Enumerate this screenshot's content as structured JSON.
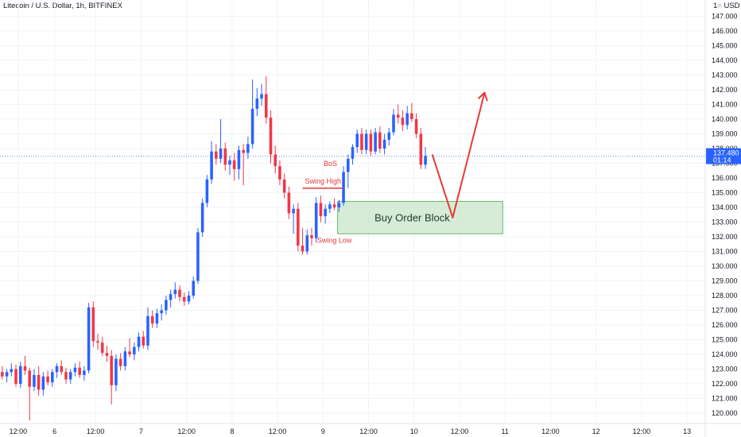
{
  "chart_data": {
    "type": "candlestick",
    "title": "Litecoin / U.S. Dollar, 1h, BITFINEX",
    "currency": "USD",
    "currency_prefix": "1",
    "xlim": [
      0,
      155
    ],
    "ylim": [
      119.3,
      148.1
    ],
    "y_ticks": [
      120,
      121,
      122,
      123,
      124,
      125,
      126,
      127,
      128,
      129,
      130,
      131,
      132,
      133,
      134,
      135,
      136,
      137,
      138,
      139,
      140,
      141,
      142,
      143,
      144,
      145,
      146,
      147
    ],
    "y_tick_labels": [
      "120.000",
      "121.000",
      "122.000",
      "123.000",
      "124.000",
      "125.000",
      "126.000",
      "127.000",
      "128.000",
      "129.000",
      "130.000",
      "131.000",
      "132.000",
      "133.000",
      "134.000",
      "135.000",
      "136.000",
      "137.000",
      "138.000",
      "139.000",
      "140.000",
      "141.000",
      "142.000",
      "143.000",
      "144.000",
      "145.000",
      "146.000",
      "147.000"
    ],
    "x_ticks": [
      {
        "x": 4,
        "label": "12:00"
      },
      {
        "x": 12,
        "label": "6"
      },
      {
        "x": 21,
        "label": "12:00"
      },
      {
        "x": 31,
        "label": "7"
      },
      {
        "x": 41,
        "label": "12:00"
      },
      {
        "x": 51,
        "label": "8"
      },
      {
        "x": 61,
        "label": "12:00"
      },
      {
        "x": 71,
        "label": "9"
      },
      {
        "x": 81,
        "label": "12:00"
      },
      {
        "x": 91,
        "label": "10"
      },
      {
        "x": 101,
        "label": "12:00"
      },
      {
        "x": 111,
        "label": "11"
      },
      {
        "x": 121,
        "label": "12:00"
      },
      {
        "x": 131,
        "label": "12"
      },
      {
        "x": 141,
        "label": "12:00"
      },
      {
        "x": 151,
        "label": "13"
      }
    ],
    "candles": [
      {
        "o": 122.8,
        "h": 123.2,
        "l": 122.3,
        "c": 122.5
      },
      {
        "o": 122.5,
        "h": 123.0,
        "l": 122.1,
        "c": 122.8
      },
      {
        "o": 122.8,
        "h": 123.4,
        "l": 122.5,
        "c": 123.0
      },
      {
        "o": 123.0,
        "h": 123.3,
        "l": 121.8,
        "c": 122.0
      },
      {
        "o": 122.0,
        "h": 123.5,
        "l": 121.7,
        "c": 123.2
      },
      {
        "o": 123.2,
        "h": 123.9,
        "l": 122.6,
        "c": 122.9
      },
      {
        "o": 122.9,
        "h": 123.1,
        "l": 119.5,
        "c": 121.8
      },
      {
        "o": 121.8,
        "h": 123.0,
        "l": 121.5,
        "c": 122.6
      },
      {
        "o": 122.6,
        "h": 123.2,
        "l": 121.2,
        "c": 121.6
      },
      {
        "o": 121.6,
        "h": 122.8,
        "l": 121.2,
        "c": 122.5
      },
      {
        "o": 122.5,
        "h": 122.9,
        "l": 121.9,
        "c": 122.1
      },
      {
        "o": 122.1,
        "h": 123.0,
        "l": 121.8,
        "c": 122.8
      },
      {
        "o": 122.8,
        "h": 123.4,
        "l": 122.4,
        "c": 123.2
      },
      {
        "o": 123.2,
        "h": 123.6,
        "l": 122.6,
        "c": 122.8
      },
      {
        "o": 122.8,
        "h": 123.1,
        "l": 122.0,
        "c": 122.3
      },
      {
        "o": 122.3,
        "h": 123.0,
        "l": 122.0,
        "c": 122.8
      },
      {
        "o": 122.8,
        "h": 123.4,
        "l": 122.5,
        "c": 123.1
      },
      {
        "o": 123.1,
        "h": 123.5,
        "l": 122.4,
        "c": 122.6
      },
      {
        "o": 122.6,
        "h": 123.2,
        "l": 122.2,
        "c": 122.9
      },
      {
        "o": 122.9,
        "h": 127.5,
        "l": 122.7,
        "c": 127.2
      },
      {
        "o": 127.2,
        "h": 127.6,
        "l": 124.5,
        "c": 124.9
      },
      {
        "o": 124.9,
        "h": 125.4,
        "l": 124.3,
        "c": 124.8
      },
      {
        "o": 124.8,
        "h": 125.2,
        "l": 123.9,
        "c": 124.1
      },
      {
        "o": 124.1,
        "h": 124.6,
        "l": 123.5,
        "c": 123.9
      },
      {
        "o": 123.9,
        "h": 124.3,
        "l": 120.6,
        "c": 121.9
      },
      {
        "o": 121.9,
        "h": 124.0,
        "l": 121.5,
        "c": 123.7
      },
      {
        "o": 123.7,
        "h": 124.1,
        "l": 122.9,
        "c": 123.2
      },
      {
        "o": 123.2,
        "h": 124.5,
        "l": 122.9,
        "c": 124.2
      },
      {
        "o": 124.2,
        "h": 125.1,
        "l": 123.8,
        "c": 124.0
      },
      {
        "o": 124.0,
        "h": 124.8,
        "l": 123.6,
        "c": 124.5
      },
      {
        "o": 124.5,
        "h": 125.5,
        "l": 124.2,
        "c": 125.2
      },
      {
        "o": 125.2,
        "h": 125.6,
        "l": 124.4,
        "c": 124.6
      },
      {
        "o": 124.6,
        "h": 127.2,
        "l": 124.3,
        "c": 126.6
      },
      {
        "o": 126.6,
        "h": 127.0,
        "l": 125.8,
        "c": 126.1
      },
      {
        "o": 126.1,
        "h": 127.1,
        "l": 125.8,
        "c": 126.8
      },
      {
        "o": 126.8,
        "h": 127.4,
        "l": 126.3,
        "c": 127.0
      },
      {
        "o": 127.0,
        "h": 128.0,
        "l": 126.7,
        "c": 127.7
      },
      {
        "o": 127.7,
        "h": 128.4,
        "l": 127.2,
        "c": 128.1
      },
      {
        "o": 128.1,
        "h": 128.9,
        "l": 127.8,
        "c": 128.4
      },
      {
        "o": 128.4,
        "h": 128.7,
        "l": 127.6,
        "c": 127.9
      },
      {
        "o": 127.9,
        "h": 128.2,
        "l": 127.3,
        "c": 127.6
      },
      {
        "o": 127.6,
        "h": 128.3,
        "l": 127.4,
        "c": 128.0
      },
      {
        "o": 128.0,
        "h": 129.3,
        "l": 127.8,
        "c": 129.0
      },
      {
        "o": 129.0,
        "h": 132.6,
        "l": 128.8,
        "c": 132.3
      },
      {
        "o": 132.3,
        "h": 134.6,
        "l": 132.0,
        "c": 134.3
      },
      {
        "o": 134.3,
        "h": 136.2,
        "l": 134.0,
        "c": 135.9
      },
      {
        "o": 135.9,
        "h": 138.5,
        "l": 135.6,
        "c": 137.8
      },
      {
        "o": 137.8,
        "h": 138.3,
        "l": 136.9,
        "c": 137.3
      },
      {
        "o": 137.3,
        "h": 140.0,
        "l": 137.0,
        "c": 138.0
      },
      {
        "o": 138.0,
        "h": 138.4,
        "l": 136.5,
        "c": 136.9
      },
      {
        "o": 136.9,
        "h": 137.5,
        "l": 136.2,
        "c": 137.2
      },
      {
        "o": 137.2,
        "h": 137.7,
        "l": 135.8,
        "c": 136.6
      },
      {
        "o": 136.6,
        "h": 138.2,
        "l": 135.9,
        "c": 137.9
      },
      {
        "o": 137.9,
        "h": 138.3,
        "l": 135.5,
        "c": 137.7
      },
      {
        "o": 137.7,
        "h": 138.8,
        "l": 137.3,
        "c": 138.3
      },
      {
        "o": 138.3,
        "h": 142.7,
        "l": 138.0,
        "c": 140.7
      },
      {
        "o": 140.7,
        "h": 142.1,
        "l": 140.2,
        "c": 141.4
      },
      {
        "o": 141.4,
        "h": 142.4,
        "l": 140.9,
        "c": 141.7
      },
      {
        "o": 141.7,
        "h": 142.9,
        "l": 139.7,
        "c": 140.1
      },
      {
        "o": 140.1,
        "h": 140.6,
        "l": 137.0,
        "c": 137.6
      },
      {
        "o": 137.6,
        "h": 138.2,
        "l": 136.3,
        "c": 136.8
      },
      {
        "o": 136.8,
        "h": 137.2,
        "l": 135.5,
        "c": 135.9
      },
      {
        "o": 135.9,
        "h": 136.3,
        "l": 134.6,
        "c": 135.0
      },
      {
        "o": 135.0,
        "h": 135.4,
        "l": 133.2,
        "c": 133.6
      },
      {
        "o": 133.6,
        "h": 134.2,
        "l": 132.2,
        "c": 133.9
      },
      {
        "o": 133.9,
        "h": 134.3,
        "l": 131.0,
        "c": 131.4
      },
      {
        "o": 131.4,
        "h": 132.6,
        "l": 130.8,
        "c": 131.0
      },
      {
        "o": 131.0,
        "h": 132.5,
        "l": 130.8,
        "c": 132.1
      },
      {
        "o": 132.1,
        "h": 132.6,
        "l": 131.4,
        "c": 131.9
      },
      {
        "o": 131.9,
        "h": 134.7,
        "l": 131.6,
        "c": 134.3
      },
      {
        "o": 134.3,
        "h": 134.8,
        "l": 133.0,
        "c": 133.4
      },
      {
        "o": 133.4,
        "h": 134.2,
        "l": 132.9,
        "c": 133.9
      },
      {
        "o": 133.9,
        "h": 134.4,
        "l": 133.6,
        "c": 134.2
      },
      {
        "o": 134.2,
        "h": 134.6,
        "l": 133.8,
        "c": 134.0
      },
      {
        "o": 134.0,
        "h": 134.5,
        "l": 133.7,
        "c": 134.3
      },
      {
        "o": 134.3,
        "h": 136.8,
        "l": 134.1,
        "c": 136.4
      },
      {
        "o": 136.4,
        "h": 137.6,
        "l": 135.3,
        "c": 137.3
      },
      {
        "o": 137.3,
        "h": 138.3,
        "l": 136.9,
        "c": 138.1
      },
      {
        "o": 138.1,
        "h": 139.3,
        "l": 137.7,
        "c": 139.0
      },
      {
        "o": 139.0,
        "h": 139.4,
        "l": 137.6,
        "c": 137.9
      },
      {
        "o": 137.9,
        "h": 139.3,
        "l": 137.6,
        "c": 139.0
      },
      {
        "o": 139.0,
        "h": 139.3,
        "l": 137.5,
        "c": 137.8
      },
      {
        "o": 137.8,
        "h": 139.4,
        "l": 137.6,
        "c": 139.1
      },
      {
        "o": 139.1,
        "h": 139.5,
        "l": 137.7,
        "c": 138.0
      },
      {
        "o": 138.0,
        "h": 139.0,
        "l": 137.6,
        "c": 138.6
      },
      {
        "o": 138.6,
        "h": 139.4,
        "l": 138.2,
        "c": 139.1
      },
      {
        "o": 139.1,
        "h": 140.7,
        "l": 138.9,
        "c": 140.3
      },
      {
        "o": 140.3,
        "h": 141.0,
        "l": 139.7,
        "c": 140.1
      },
      {
        "o": 140.1,
        "h": 140.6,
        "l": 139.2,
        "c": 139.6
      },
      {
        "o": 139.6,
        "h": 140.9,
        "l": 139.3,
        "c": 140.4
      },
      {
        "o": 140.4,
        "h": 141.1,
        "l": 139.8,
        "c": 140.0
      },
      {
        "o": 140.0,
        "h": 140.4,
        "l": 138.7,
        "c": 139.0
      },
      {
        "o": 139.0,
        "h": 139.4,
        "l": 136.6,
        "c": 136.9
      },
      {
        "o": 136.9,
        "h": 138.1,
        "l": 136.6,
        "c": 137.5
      }
    ],
    "colors": {
      "up": "#2962ff",
      "down": "#f23645",
      "annotation": "#e53935",
      "zone_fill": "#c8e6c9",
      "zone_border": "#66bb6a",
      "zone_text": "#1b3a2f",
      "price_badge": "#2962ff",
      "grid": "#f0f3fa"
    },
    "last_price": 137.48,
    "last_price_label": "137.480",
    "countdown_label": "01:14",
    "annotations": {
      "bos": {
        "label": "BoS",
        "x": 72.6,
        "y": 136.8
      },
      "swing_high": {
        "label": "Swing High",
        "x1": 66.5,
        "x2": 75.5,
        "y": 135.3
      },
      "swing_low": {
        "label": "Swing Low",
        "x": 73.5,
        "y": 132.2
      },
      "order_block": {
        "label": "Buy Order Block",
        "x1": 74.2,
        "x2": 110.5,
        "y1": 132.2,
        "y2": 134.4
      },
      "projection": [
        {
          "x": 95.0,
          "y": 137.6
        },
        {
          "x": 99.5,
          "y": 133.3
        },
        {
          "x": 106.5,
          "y": 141.8
        }
      ]
    }
  }
}
